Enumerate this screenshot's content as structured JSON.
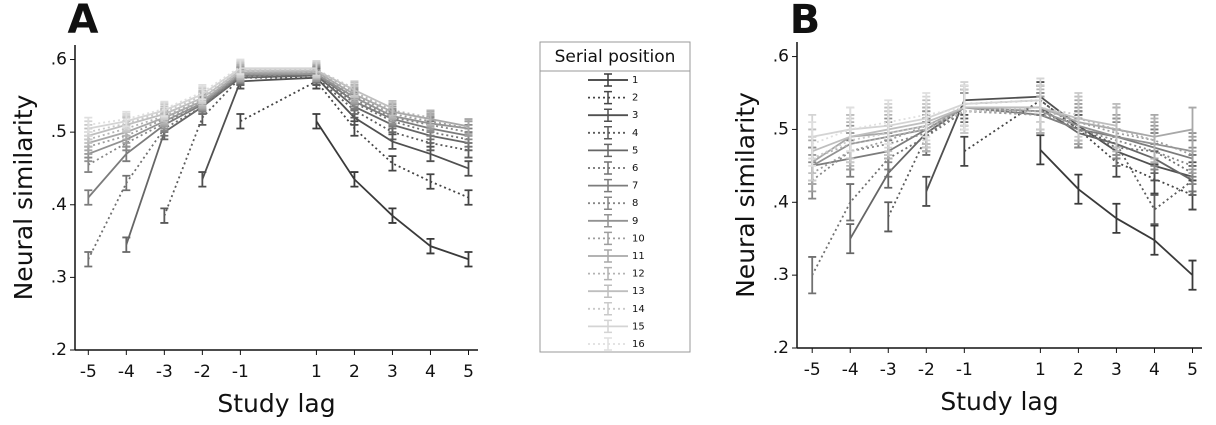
{
  "chart_data": [
    {
      "type": "line",
      "title": "A",
      "xlabel": "Study lag",
      "ylabel": "Neural similarity",
      "x": [
        -5,
        -4,
        -3,
        -2,
        -1,
        1,
        2,
        3,
        4,
        5
      ],
      "xlim": [
        -5.35,
        5.25
      ],
      "xticks": [
        -5,
        -4,
        -3,
        -2,
        -1,
        1,
        2,
        3,
        4,
        5
      ],
      "ylim": [
        0.2,
        0.62
      ],
      "yticks": [
        {
          "value": 0.2,
          "label": ".2"
        },
        {
          "value": 0.3,
          "label": ".3"
        },
        {
          "value": 0.4,
          "label": ".4"
        },
        {
          "value": 0.5,
          "label": ".5"
        },
        {
          "value": 0.6,
          "label": ".6"
        }
      ],
      "legend": {
        "title": "Serial position"
      },
      "series": [
        {
          "name": "1",
          "color": "#3a3a3a",
          "dash": "solid",
          "error": 0.01,
          "values": [
            null,
            null,
            null,
            null,
            null,
            0.515,
            0.435,
            0.385,
            0.343,
            0.325
          ]
        },
        {
          "name": "2",
          "color": "#454545",
          "dash": "dotted",
          "error": 0.01,
          "values": [
            null,
            null,
            null,
            null,
            0.515,
            0.57,
            0.505,
            0.457,
            0.432,
            0.41
          ]
        },
        {
          "name": "3",
          "color": "#505050",
          "dash": "solid",
          "error": 0.01,
          "values": [
            null,
            null,
            null,
            0.435,
            0.57,
            0.575,
            0.52,
            0.487,
            0.47,
            0.45
          ]
        },
        {
          "name": "4",
          "color": "#5b5b5b",
          "dash": "dotted",
          "error": 0.01,
          "values": [
            null,
            null,
            0.385,
            0.52,
            0.575,
            0.575,
            0.53,
            0.5,
            0.485,
            0.475
          ]
        },
        {
          "name": "5",
          "color": "#666666",
          "dash": "solid",
          "error": 0.01,
          "values": [
            null,
            0.345,
            0.5,
            0.535,
            0.575,
            0.578,
            0.535,
            0.51,
            0.495,
            0.485
          ]
        },
        {
          "name": "6",
          "color": "#717171",
          "dash": "dotted",
          "error": 0.01,
          "values": [
            0.325,
            0.43,
            0.505,
            0.535,
            0.577,
            0.578,
            0.54,
            0.515,
            0.5,
            0.49
          ]
        },
        {
          "name": "7",
          "color": "#7c7c7c",
          "dash": "solid",
          "error": 0.01,
          "values": [
            0.41,
            0.47,
            0.51,
            0.538,
            0.578,
            0.58,
            0.542,
            0.518,
            0.505,
            0.495
          ]
        },
        {
          "name": "8",
          "color": "#878787",
          "dash": "dotted",
          "error": 0.01,
          "values": [
            0.455,
            0.485,
            0.512,
            0.54,
            0.578,
            0.58,
            0.545,
            0.52,
            0.51,
            0.5
          ]
        },
        {
          "name": "9",
          "color": "#929292",
          "dash": "solid",
          "error": 0.01,
          "values": [
            0.47,
            0.49,
            0.515,
            0.54,
            0.58,
            0.58,
            0.548,
            0.522,
            0.512,
            0.505
          ]
        },
        {
          "name": "10",
          "color": "#9d9d9d",
          "dash": "dotted",
          "error": 0.01,
          "values": [
            0.48,
            0.495,
            0.518,
            0.542,
            0.58,
            0.582,
            0.55,
            0.525,
            0.515,
            0.505
          ]
        },
        {
          "name": "11",
          "color": "#a8a8a8",
          "dash": "solid",
          "error": 0.01,
          "values": [
            0.485,
            0.5,
            0.52,
            0.543,
            0.582,
            0.583,
            0.552,
            0.528,
            0.518,
            0.508
          ]
        },
        {
          "name": "12",
          "color": "#b3b3b3",
          "dash": "dotted",
          "error": 0.01,
          "values": [
            0.49,
            0.505,
            0.522,
            0.545,
            0.583,
            0.584,
            0.555,
            0.53,
            0.52,
            null
          ]
        },
        {
          "name": "13",
          "color": "#bebebe",
          "dash": "solid",
          "error": 0.01,
          "values": [
            0.495,
            0.51,
            0.525,
            0.547,
            0.585,
            0.585,
            0.558,
            0.533,
            null,
            null
          ]
        },
        {
          "name": "14",
          "color": "#c9c9c9",
          "dash": "dotted",
          "error": 0.01,
          "values": [
            0.5,
            0.512,
            0.528,
            0.55,
            0.586,
            0.586,
            0.56,
            null,
            null,
            null
          ]
        },
        {
          "name": "15",
          "color": "#d4d4d4",
          "dash": "solid",
          "error": 0.01,
          "values": [
            0.505,
            0.515,
            0.53,
            0.552,
            0.588,
            0.588,
            null,
            null,
            null,
            null
          ]
        },
        {
          "name": "16",
          "color": "#dfdfdf",
          "dash": "dotted",
          "error": 0.01,
          "values": [
            0.51,
            0.518,
            0.532,
            0.555,
            0.59,
            null,
            null,
            null,
            null,
            null
          ]
        }
      ]
    },
    {
      "type": "line",
      "title": "B",
      "xlabel": "Study lag",
      "ylabel": "Neural similarity",
      "x": [
        -5,
        -4,
        -3,
        -2,
        -1,
        1,
        2,
        3,
        4,
        5
      ],
      "xlim": [
        -5.4,
        5.25
      ],
      "xticks": [
        -5,
        -4,
        -3,
        -2,
        -1,
        1,
        2,
        3,
        4,
        5
      ],
      "ylim": [
        0.2,
        0.62
      ],
      "yticks": [
        {
          "value": 0.2,
          "label": ".2"
        },
        {
          "value": 0.3,
          "label": ".3"
        },
        {
          "value": 0.4,
          "label": ".4"
        },
        {
          "value": 0.5,
          "label": ".5"
        },
        {
          "value": 0.6,
          "label": ".6"
        }
      ],
      "series": [
        {
          "color": "#3a3a3a",
          "dash": "solid",
          "error": 0.02,
          "values": [
            null,
            null,
            null,
            null,
            null,
            0.472,
            0.418,
            0.378,
            0.348,
            0.3
          ]
        },
        {
          "color": "#454545",
          "dash": "dotted",
          "error": 0.02,
          "values": [
            null,
            null,
            null,
            null,
            0.47,
            0.54,
            0.5,
            0.455,
            0.432,
            0.41
          ]
        },
        {
          "color": "#505050",
          "dash": "solid",
          "error": 0.02,
          "values": [
            null,
            null,
            null,
            0.415,
            0.54,
            0.545,
            0.505,
            0.47,
            0.45,
            0.435
          ]
        },
        {
          "color": "#5b5b5b",
          "dash": "dotted",
          "error": 0.02,
          "values": [
            null,
            null,
            0.38,
            0.49,
            0.535,
            0.54,
            0.5,
            0.48,
            0.39,
            0.43
          ]
        },
        {
          "color": "#666666",
          "dash": "solid",
          "error": 0.02,
          "values": [
            null,
            0.35,
            0.44,
            0.495,
            0.53,
            0.53,
            0.495,
            0.48,
            0.46,
            0.43
          ]
        },
        {
          "color": "#717171",
          "dash": "dotted",
          "error": 0.025,
          "values": [
            0.3,
            0.4,
            0.46,
            0.49,
            0.525,
            0.525,
            0.5,
            0.475,
            0.47,
            0.44
          ]
        },
        {
          "color": "#7c7c7c",
          "dash": "solid",
          "error": 0.025,
          "values": [
            0.45,
            0.46,
            0.47,
            0.5,
            0.53,
            0.52,
            0.5,
            0.49,
            0.475,
            0.46
          ]
        },
        {
          "color": "#878787",
          "dash": "dotted",
          "error": 0.025,
          "values": [
            0.43,
            0.47,
            0.48,
            0.495,
            0.525,
            0.52,
            0.5,
            0.485,
            0.47,
            0.45
          ]
        },
        {
          "color": "#929292",
          "dash": "solid",
          "error": 0.025,
          "values": [
            0.45,
            0.48,
            0.49,
            0.5,
            0.53,
            0.525,
            0.505,
            0.49,
            0.48,
            0.47
          ]
        },
        {
          "color": "#9d9d9d",
          "dash": "dotted",
          "error": 0.025,
          "values": [
            0.44,
            0.47,
            0.485,
            0.505,
            0.525,
            0.52,
            0.51,
            0.495,
            0.485,
            0.465
          ]
        },
        {
          "color": "#a8a8a8",
          "dash": "solid",
          "error": 0.03,
          "values": [
            0.455,
            0.49,
            0.495,
            0.505,
            0.53,
            0.53,
            0.51,
            0.5,
            0.49,
            0.5
          ]
        },
        {
          "color": "#b3b3b3",
          "dash": "dotted",
          "error": 0.03,
          "values": [
            0.46,
            0.48,
            0.49,
            0.5,
            0.525,
            0.525,
            0.515,
            0.5,
            0.485,
            null
          ]
        },
        {
          "color": "#bebebe",
          "dash": "solid",
          "error": 0.03,
          "values": [
            0.47,
            0.49,
            0.5,
            0.51,
            0.53,
            0.53,
            0.515,
            0.505,
            null,
            null
          ]
        },
        {
          "color": "#c9c9c9",
          "dash": "dotted",
          "error": 0.03,
          "values": [
            0.46,
            0.485,
            0.495,
            0.505,
            0.525,
            0.53,
            0.52,
            null,
            null,
            null
          ]
        },
        {
          "color": "#d4d4d4",
          "dash": "solid",
          "error": 0.03,
          "values": [
            0.49,
            0.5,
            0.505,
            0.515,
            0.535,
            0.54,
            null,
            null,
            null,
            null
          ]
        },
        {
          "color": "#dfdfdf",
          "dash": "dotted",
          "error": 0.03,
          "values": [
            0.48,
            0.5,
            0.51,
            0.52,
            0.53,
            null,
            null,
            null,
            null,
            null
          ]
        }
      ]
    }
  ]
}
